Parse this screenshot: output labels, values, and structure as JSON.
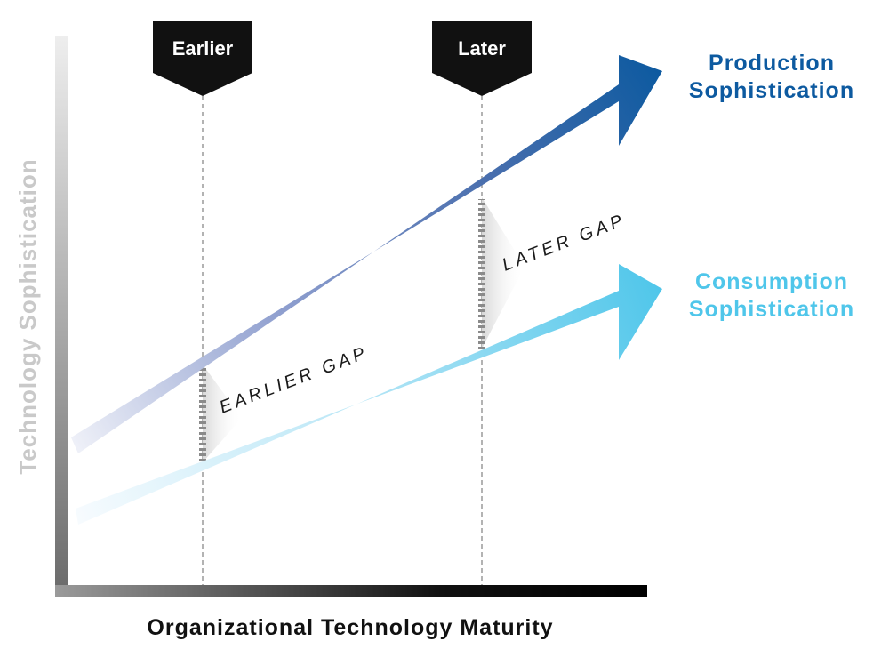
{
  "markers": {
    "earlier": "Earlier",
    "later": "Later"
  },
  "series": {
    "production": "Production Sophistication",
    "production_line1": "Production",
    "production_line2": "Sophistication",
    "consumption": "Consumption Sophistication",
    "consumption_line1": "Consumption",
    "consumption_line2": "Sophistication"
  },
  "gaps": {
    "earlier": "EARLIER GAP",
    "later": "LATER GAP"
  },
  "axes": {
    "y_label": "Technology Sophistication",
    "x_label": "Organizational Technology Maturity"
  },
  "colors": {
    "production": "#0d5aa0",
    "consumption": "#4fc6ea",
    "y_axis_label": "#c9c9c9",
    "marker_bg": "#111111"
  }
}
